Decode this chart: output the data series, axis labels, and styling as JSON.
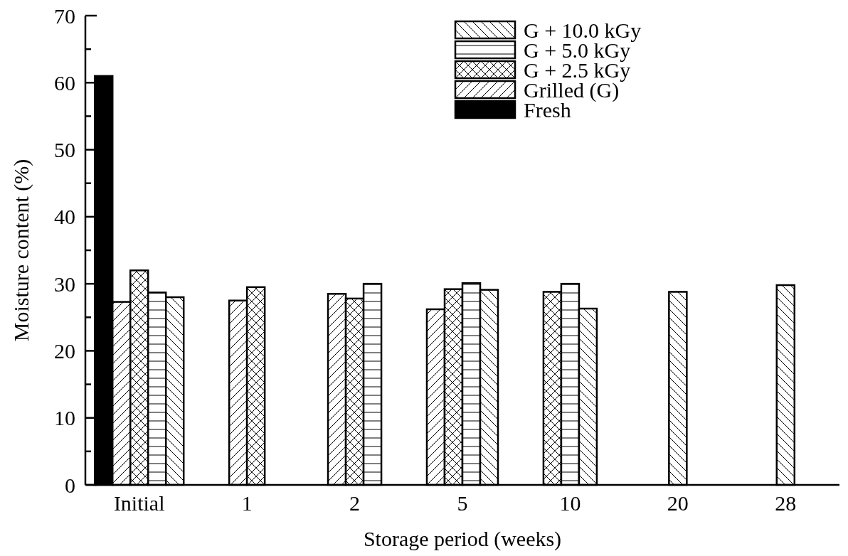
{
  "chart_data": {
    "type": "bar",
    "xlabel": "Storage period (weeks)",
    "ylabel": "Moisture content (%)",
    "categories": [
      "Initial",
      "1",
      "2",
      "5",
      "10",
      "20",
      "28"
    ],
    "series": [
      {
        "name": "Fresh",
        "color": "#000000",
        "values": [
          61.0,
          null,
          null,
          null,
          null,
          null,
          null
        ]
      },
      {
        "name": "Grilled (G)",
        "color": "#000000",
        "values": [
          27.3,
          27.5,
          28.5,
          26.2,
          null,
          null,
          null
        ]
      },
      {
        "name": "G + 2.5 kGy",
        "color": "#000000",
        "values": [
          32.0,
          29.5,
          27.8,
          29.2,
          28.8,
          null,
          null
        ]
      },
      {
        "name": "G + 5.0 kGy",
        "color": "#000000",
        "values": [
          28.7,
          null,
          30.0,
          30.1,
          30.0,
          null,
          null
        ]
      },
      {
        "name": "G + 10.0 kGy",
        "color": "#000000",
        "values": [
          28.0,
          null,
          null,
          29.1,
          26.3,
          28.8,
          29.8
        ]
      }
    ],
    "ylim": [
      0,
      70
    ],
    "yticks": [
      0,
      {
        "value": 5,
        "label": null
      },
      10,
      {
        "value": 15,
        "label": null
      },
      20,
      {
        "value": 25,
        "label": null
      },
      30,
      {
        "value": 35,
        "label": null
      },
      40,
      {
        "value": 45,
        "label": null
      },
      50,
      {
        "value": 55,
        "label": null
      },
      60,
      {
        "value": 65,
        "label": null
      },
      70
    ],
    "grid": false,
    "legend": "top right"
  }
}
